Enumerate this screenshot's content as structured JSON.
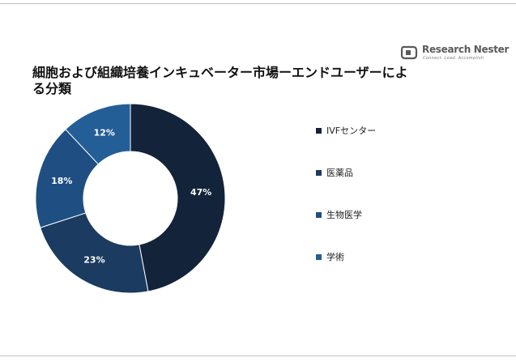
{
  "header": {
    "title": "細胞および組織培養インキュベーター市場ーエンドユーザーによる分類"
  },
  "logo": {
    "name": "Research Nester",
    "tagline": "Connect. Lead. Accomplish",
    "color": "#5a5a5a"
  },
  "chart_data": {
    "type": "donut",
    "title": "細胞および組織培養インキュベーター市場ーエンドユーザーによる分類",
    "categories": [
      "IVFセンター",
      "医薬品",
      "生物医学",
      "学術"
    ],
    "values": [
      47,
      23,
      18,
      12
    ],
    "data_labels": [
      "47%",
      "23%",
      "18%",
      "12%"
    ],
    "unit": "%",
    "colors": [
      "#13233a",
      "#1b3b60",
      "#1f4e82",
      "#235e97"
    ],
    "legend_position": "right"
  }
}
